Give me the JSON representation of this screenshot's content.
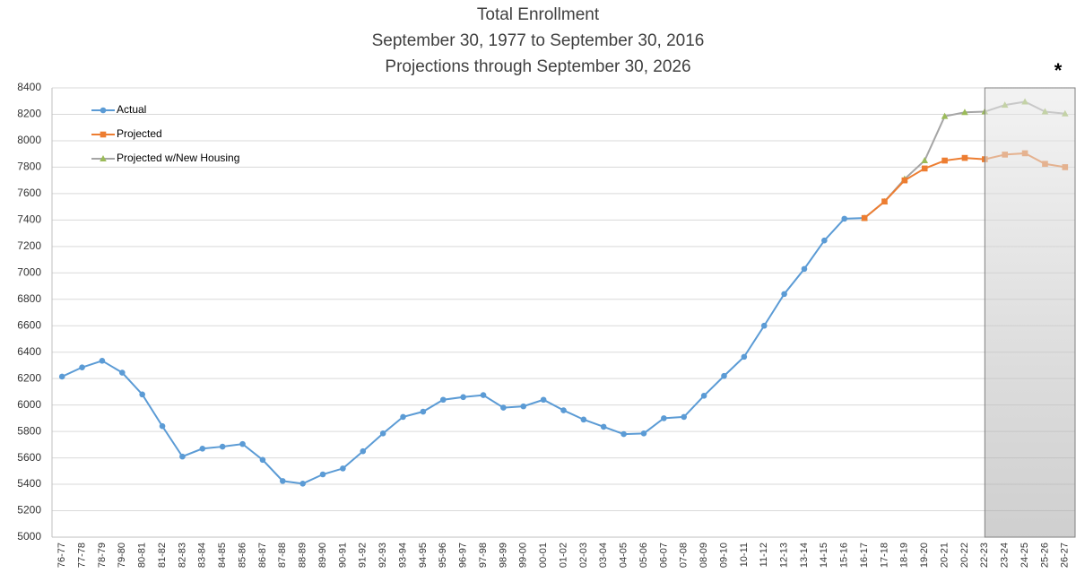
{
  "chart_data": {
    "type": "line",
    "title": "Total Enrollment",
    "subtitle": [
      "September 30, 1977 to September 30, 2016",
      "Projections through September 30, 2026"
    ],
    "annotation": "*",
    "categories": [
      "76-77",
      "77-78",
      "78-79",
      "79-80",
      "80-81",
      "81-82",
      "82-83",
      "83-84",
      "84-85",
      "85-86",
      "86-87",
      "87-88",
      "88-89",
      "89-90",
      "90-91",
      "91-92",
      "92-93",
      "93-94",
      "94-95",
      "95-96",
      "96-97",
      "97-98",
      "98-99",
      "99-00",
      "00-01",
      "01-02",
      "02-03",
      "03-04",
      "04-05",
      "05-06",
      "06-07",
      "07-08",
      "08-09",
      "09-10",
      "10-11",
      "11-12",
      "12-13",
      "13-14",
      "14-15",
      "15-16",
      "16-17",
      "17-18",
      "18-19",
      "19-20",
      "20-21",
      "20-22",
      "22-23",
      "23-24",
      "24-25",
      "25-26",
      "26-27"
    ],
    "series": [
      {
        "name": "Actual",
        "color": "#5b9bd5",
        "marker": "circle",
        "marker_color": "#5b9bd5",
        "values": [
          6215,
          6285,
          6335,
          6245,
          6080,
          5840,
          5610,
          5670,
          5685,
          5705,
          5585,
          5425,
          5405,
          5475,
          5520,
          5650,
          5785,
          5910,
          5950,
          6040,
          6060,
          6075,
          5980,
          5990,
          6040,
          5960,
          5890,
          5835,
          5780,
          5785,
          5900,
          5910,
          6070,
          6220,
          6365,
          6600,
          6840,
          7030,
          7245,
          7410,
          7415,
          null,
          null,
          null,
          null,
          null,
          null,
          null,
          null,
          null,
          null
        ]
      },
      {
        "name": "Projected w/New Housing",
        "color": "#a5a5a5",
        "marker": "triangle",
        "marker_color": "#9bbb59",
        "values": [
          null,
          null,
          null,
          null,
          null,
          null,
          null,
          null,
          null,
          null,
          null,
          null,
          null,
          null,
          null,
          null,
          null,
          null,
          null,
          null,
          null,
          null,
          null,
          null,
          null,
          null,
          null,
          null,
          null,
          null,
          null,
          null,
          null,
          null,
          null,
          null,
          null,
          null,
          null,
          null,
          7415,
          7540,
          7710,
          7850,
          8185,
          8215,
          8220,
          8270,
          8295,
          8220,
          8205
        ]
      },
      {
        "name": "Projected",
        "color": "#ed7d31",
        "marker": "square",
        "marker_color": "#ed7d31",
        "values": [
          null,
          null,
          null,
          null,
          null,
          null,
          null,
          null,
          null,
          null,
          null,
          null,
          null,
          null,
          null,
          null,
          null,
          null,
          null,
          null,
          null,
          null,
          null,
          null,
          null,
          null,
          null,
          null,
          null,
          null,
          null,
          null,
          null,
          null,
          null,
          null,
          null,
          null,
          null,
          null,
          7415,
          7540,
          7700,
          7790,
          7850,
          7870,
          7860,
          7895,
          7905,
          7825,
          7800
        ]
      }
    ],
    "legend_order": [
      0,
      2,
      1
    ],
    "ylim": [
      5000,
      8400
    ],
    "yticks": [
      5000,
      5200,
      5400,
      5600,
      5800,
      6000,
      6200,
      6400,
      6600,
      6800,
      7000,
      7200,
      7400,
      7600,
      7800,
      8000,
      8200,
      8400
    ],
    "grid": true,
    "legend": "upper left"
  }
}
